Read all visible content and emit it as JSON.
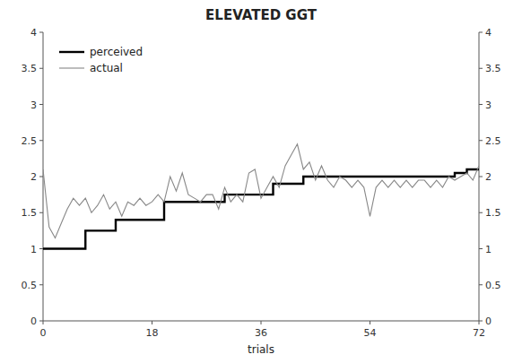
{
  "chart_data": {
    "type": "line",
    "title": "ELEVATED GGT",
    "x_label": "trials",
    "xlim": [
      0,
      72
    ],
    "ylim": [
      0,
      4
    ],
    "xticks": [
      0,
      18,
      36,
      54,
      72
    ],
    "yticks": [
      0,
      0.5,
      1,
      1.5,
      2,
      2.5,
      3,
      3.5,
      4
    ],
    "y2lim": [
      0,
      4
    ],
    "y2ticks": [
      0,
      0.5,
      1,
      1.5,
      2,
      2.5,
      3,
      3.5,
      4
    ],
    "grid": false,
    "legend": "upper left",
    "series": [
      {
        "name": "perceived",
        "color": "#000000",
        "x": [
          0,
          7,
          7,
          12,
          12,
          20,
          20,
          30,
          30,
          38,
          38,
          43,
          43,
          68,
          68,
          70,
          70,
          72
        ],
        "values": [
          1.0,
          1.0,
          1.25,
          1.25,
          1.4,
          1.4,
          1.65,
          1.65,
          1.75,
          1.75,
          1.9,
          1.9,
          2.0,
          2.0,
          2.05,
          2.05,
          2.1,
          2.1
        ]
      },
      {
        "name": "actual",
        "color": "#888888",
        "x": [
          0,
          1,
          2,
          3,
          4,
          5,
          6,
          7,
          8,
          9,
          10,
          11,
          12,
          13,
          14,
          15,
          16,
          17,
          18,
          19,
          20,
          21,
          22,
          23,
          24,
          25,
          26,
          27,
          28,
          29,
          30,
          31,
          32,
          33,
          34,
          35,
          36,
          37,
          38,
          39,
          40,
          41,
          42,
          43,
          44,
          45,
          46,
          47,
          48,
          49,
          50,
          51,
          52,
          53,
          54,
          55,
          56,
          57,
          58,
          59,
          60,
          61,
          62,
          63,
          64,
          65,
          66,
          67,
          68,
          69,
          70,
          71,
          72
        ],
        "values": [
          2.1,
          1.3,
          1.15,
          1.35,
          1.55,
          1.7,
          1.6,
          1.7,
          1.5,
          1.6,
          1.75,
          1.55,
          1.65,
          1.45,
          1.65,
          1.6,
          1.7,
          1.6,
          1.65,
          1.75,
          1.65,
          2.0,
          1.8,
          2.05,
          1.75,
          1.7,
          1.65,
          1.75,
          1.75,
          1.55,
          1.85,
          1.65,
          1.75,
          1.65,
          2.05,
          2.1,
          1.7,
          1.85,
          2.0,
          1.85,
          2.15,
          2.3,
          2.45,
          2.1,
          2.2,
          1.95,
          2.15,
          1.95,
          1.85,
          2.0,
          1.95,
          1.85,
          1.95,
          1.85,
          1.45,
          1.85,
          1.95,
          1.85,
          1.95,
          1.85,
          1.95,
          1.85,
          1.95,
          1.95,
          1.85,
          1.95,
          1.85,
          2.0,
          1.95,
          2.0,
          2.05,
          1.95,
          2.15
        ]
      }
    ]
  }
}
